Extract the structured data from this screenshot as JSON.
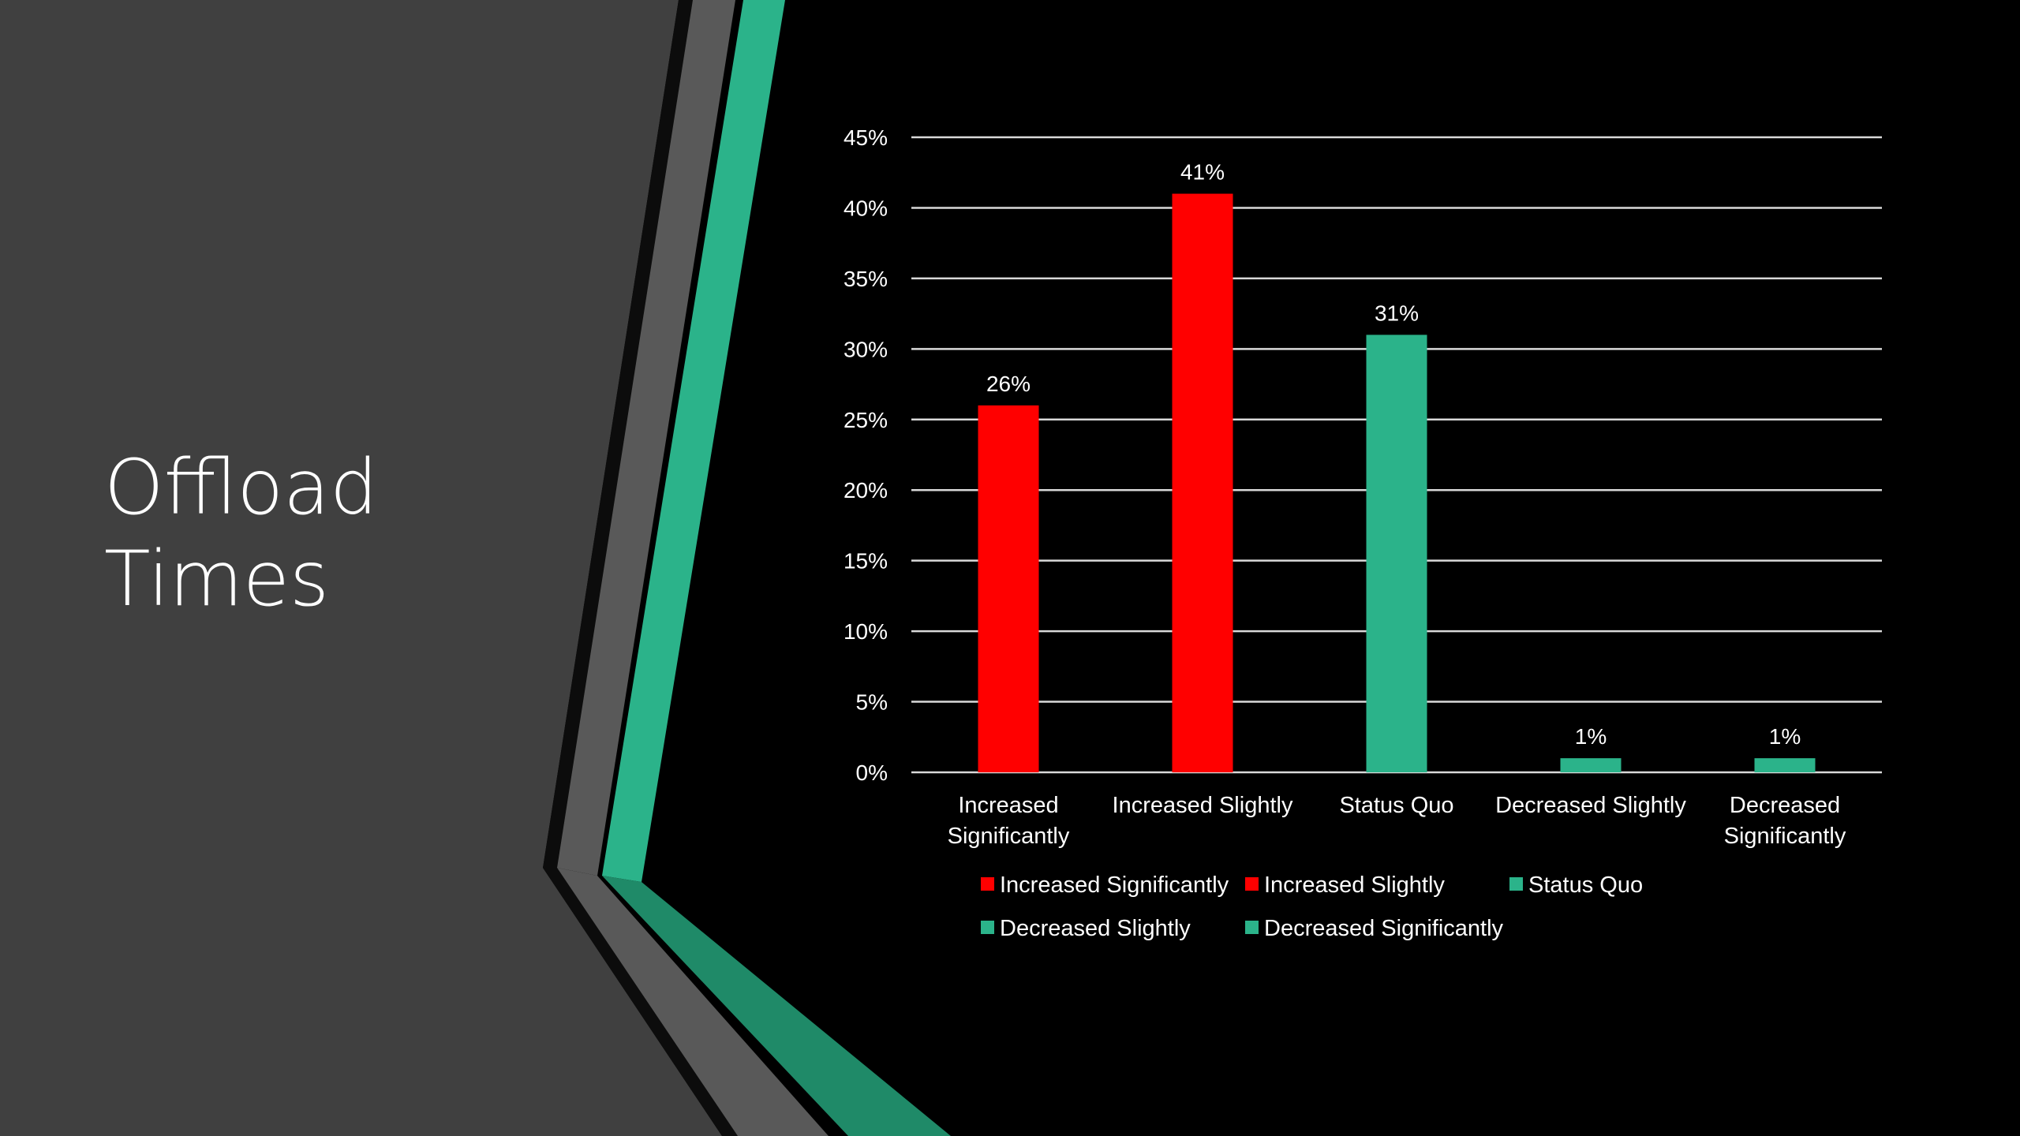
{
  "slide": {
    "title_line1": "Offload",
    "title_line2": "Times"
  },
  "colors": {
    "background": "#000000",
    "left_panel": "#404040",
    "stripe_gray": "#595959",
    "stripe_teal": "#2bb38a",
    "stripe_teal_dark": "#1f8a68",
    "increase": "#ff0000",
    "decrease_or_same": "#2bb38a",
    "gridline": "#d9d9d9"
  },
  "chart_data": {
    "type": "bar",
    "categories": [
      "Increased Significantly",
      "Increased Slightly",
      "Status Quo",
      "Decreased Slightly",
      "Decreased Significantly"
    ],
    "category_display": [
      [
        "Increased",
        "Significantly"
      ],
      [
        "Increased Slightly"
      ],
      [
        "Status Quo"
      ],
      [
        "Decreased Slightly"
      ],
      [
        "Decreased",
        "Significantly"
      ]
    ],
    "values": [
      26,
      41,
      31,
      1,
      1
    ],
    "data_labels": [
      "26%",
      "41%",
      "31%",
      "1%",
      "1%"
    ],
    "bar_colors": [
      "#ff0000",
      "#ff0000",
      "#2bb38a",
      "#2bb38a",
      "#2bb38a"
    ],
    "ylim": [
      0,
      45
    ],
    "ytick_values": [
      0,
      5,
      10,
      15,
      20,
      25,
      30,
      35,
      40,
      45
    ],
    "ytick_labels": [
      "0%",
      "5%",
      "10%",
      "15%",
      "20%",
      "25%",
      "30%",
      "35%",
      "40%",
      "45%"
    ],
    "grid": true,
    "title": "",
    "xlabel": "",
    "ylabel": "",
    "legend": {
      "placement": "bottom",
      "entries": [
        {
          "label": "Increased Significantly",
          "color": "#ff0000"
        },
        {
          "label": "Increased Slightly",
          "color": "#ff0000"
        },
        {
          "label": "Status Quo",
          "color": "#2bb38a"
        },
        {
          "label": "Decreased Slightly",
          "color": "#2bb38a"
        },
        {
          "label": "Decreased Significantly",
          "color": "#2bb38a"
        }
      ]
    }
  }
}
